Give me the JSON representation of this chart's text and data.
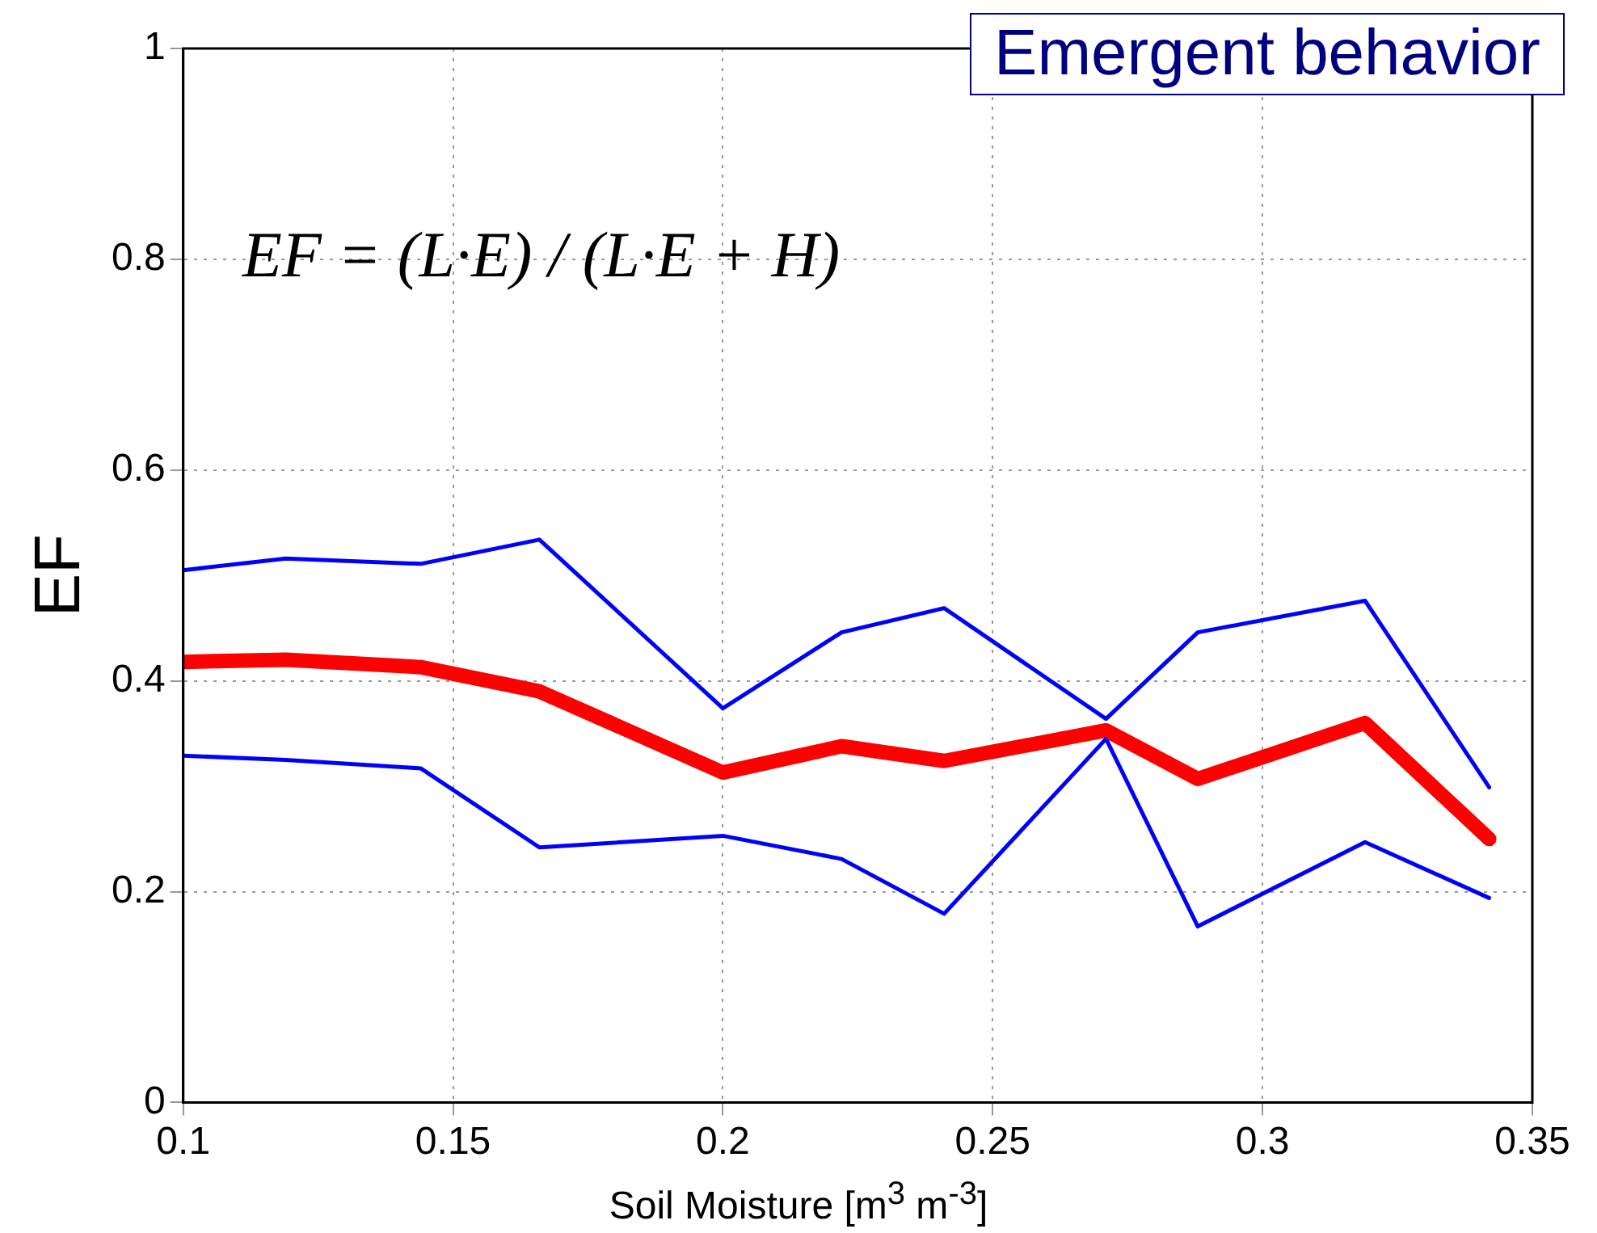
{
  "chart_data": {
    "type": "line",
    "ylabel": "EF",
    "xlabel": "Soil Moisture [m$^{3}$ m$^{-3}$]",
    "annotations": [
      "Emergent behavior",
      "EF = (L·E) / (L·E + H)"
    ],
    "x": [
      0.1,
      0.119,
      0.144,
      0.166,
      0.2,
      0.222,
      0.241,
      0.271,
      0.288,
      0.319,
      0.342
    ],
    "series": [
      {
        "color": "#0000ff",
        "values": [
          0.505,
          0.516,
          0.511,
          0.534,
          0.374,
          0.446,
          0.469,
          0.364,
          0.446,
          0.476,
          0.299
        ]
      },
      {
        "color": "#0000ff",
        "values": [
          0.329,
          0.325,
          0.317,
          0.242,
          0.253,
          0.231,
          0.179,
          0.345,
          0.167,
          0.247,
          0.194
        ]
      },
      {
        "color": "#ff0000",
        "values": [
          0.418,
          0.42,
          0.413,
          0.39,
          0.313,
          0.338,
          0.324,
          0.353,
          0.307,
          0.36,
          0.25
        ]
      }
    ],
    "xlim": [
      0.1,
      0.35
    ],
    "xticks": [
      0.1,
      0.15,
      0.2,
      0.25,
      0.3,
      0.35
    ],
    "ylim": [
      0,
      1
    ],
    "yticks": [
      0,
      0.2,
      0.4,
      0.6,
      0.8,
      1
    ],
    "grid": true,
    "legend": false,
    "marker": "none",
    "line_style": "solid"
  }
}
